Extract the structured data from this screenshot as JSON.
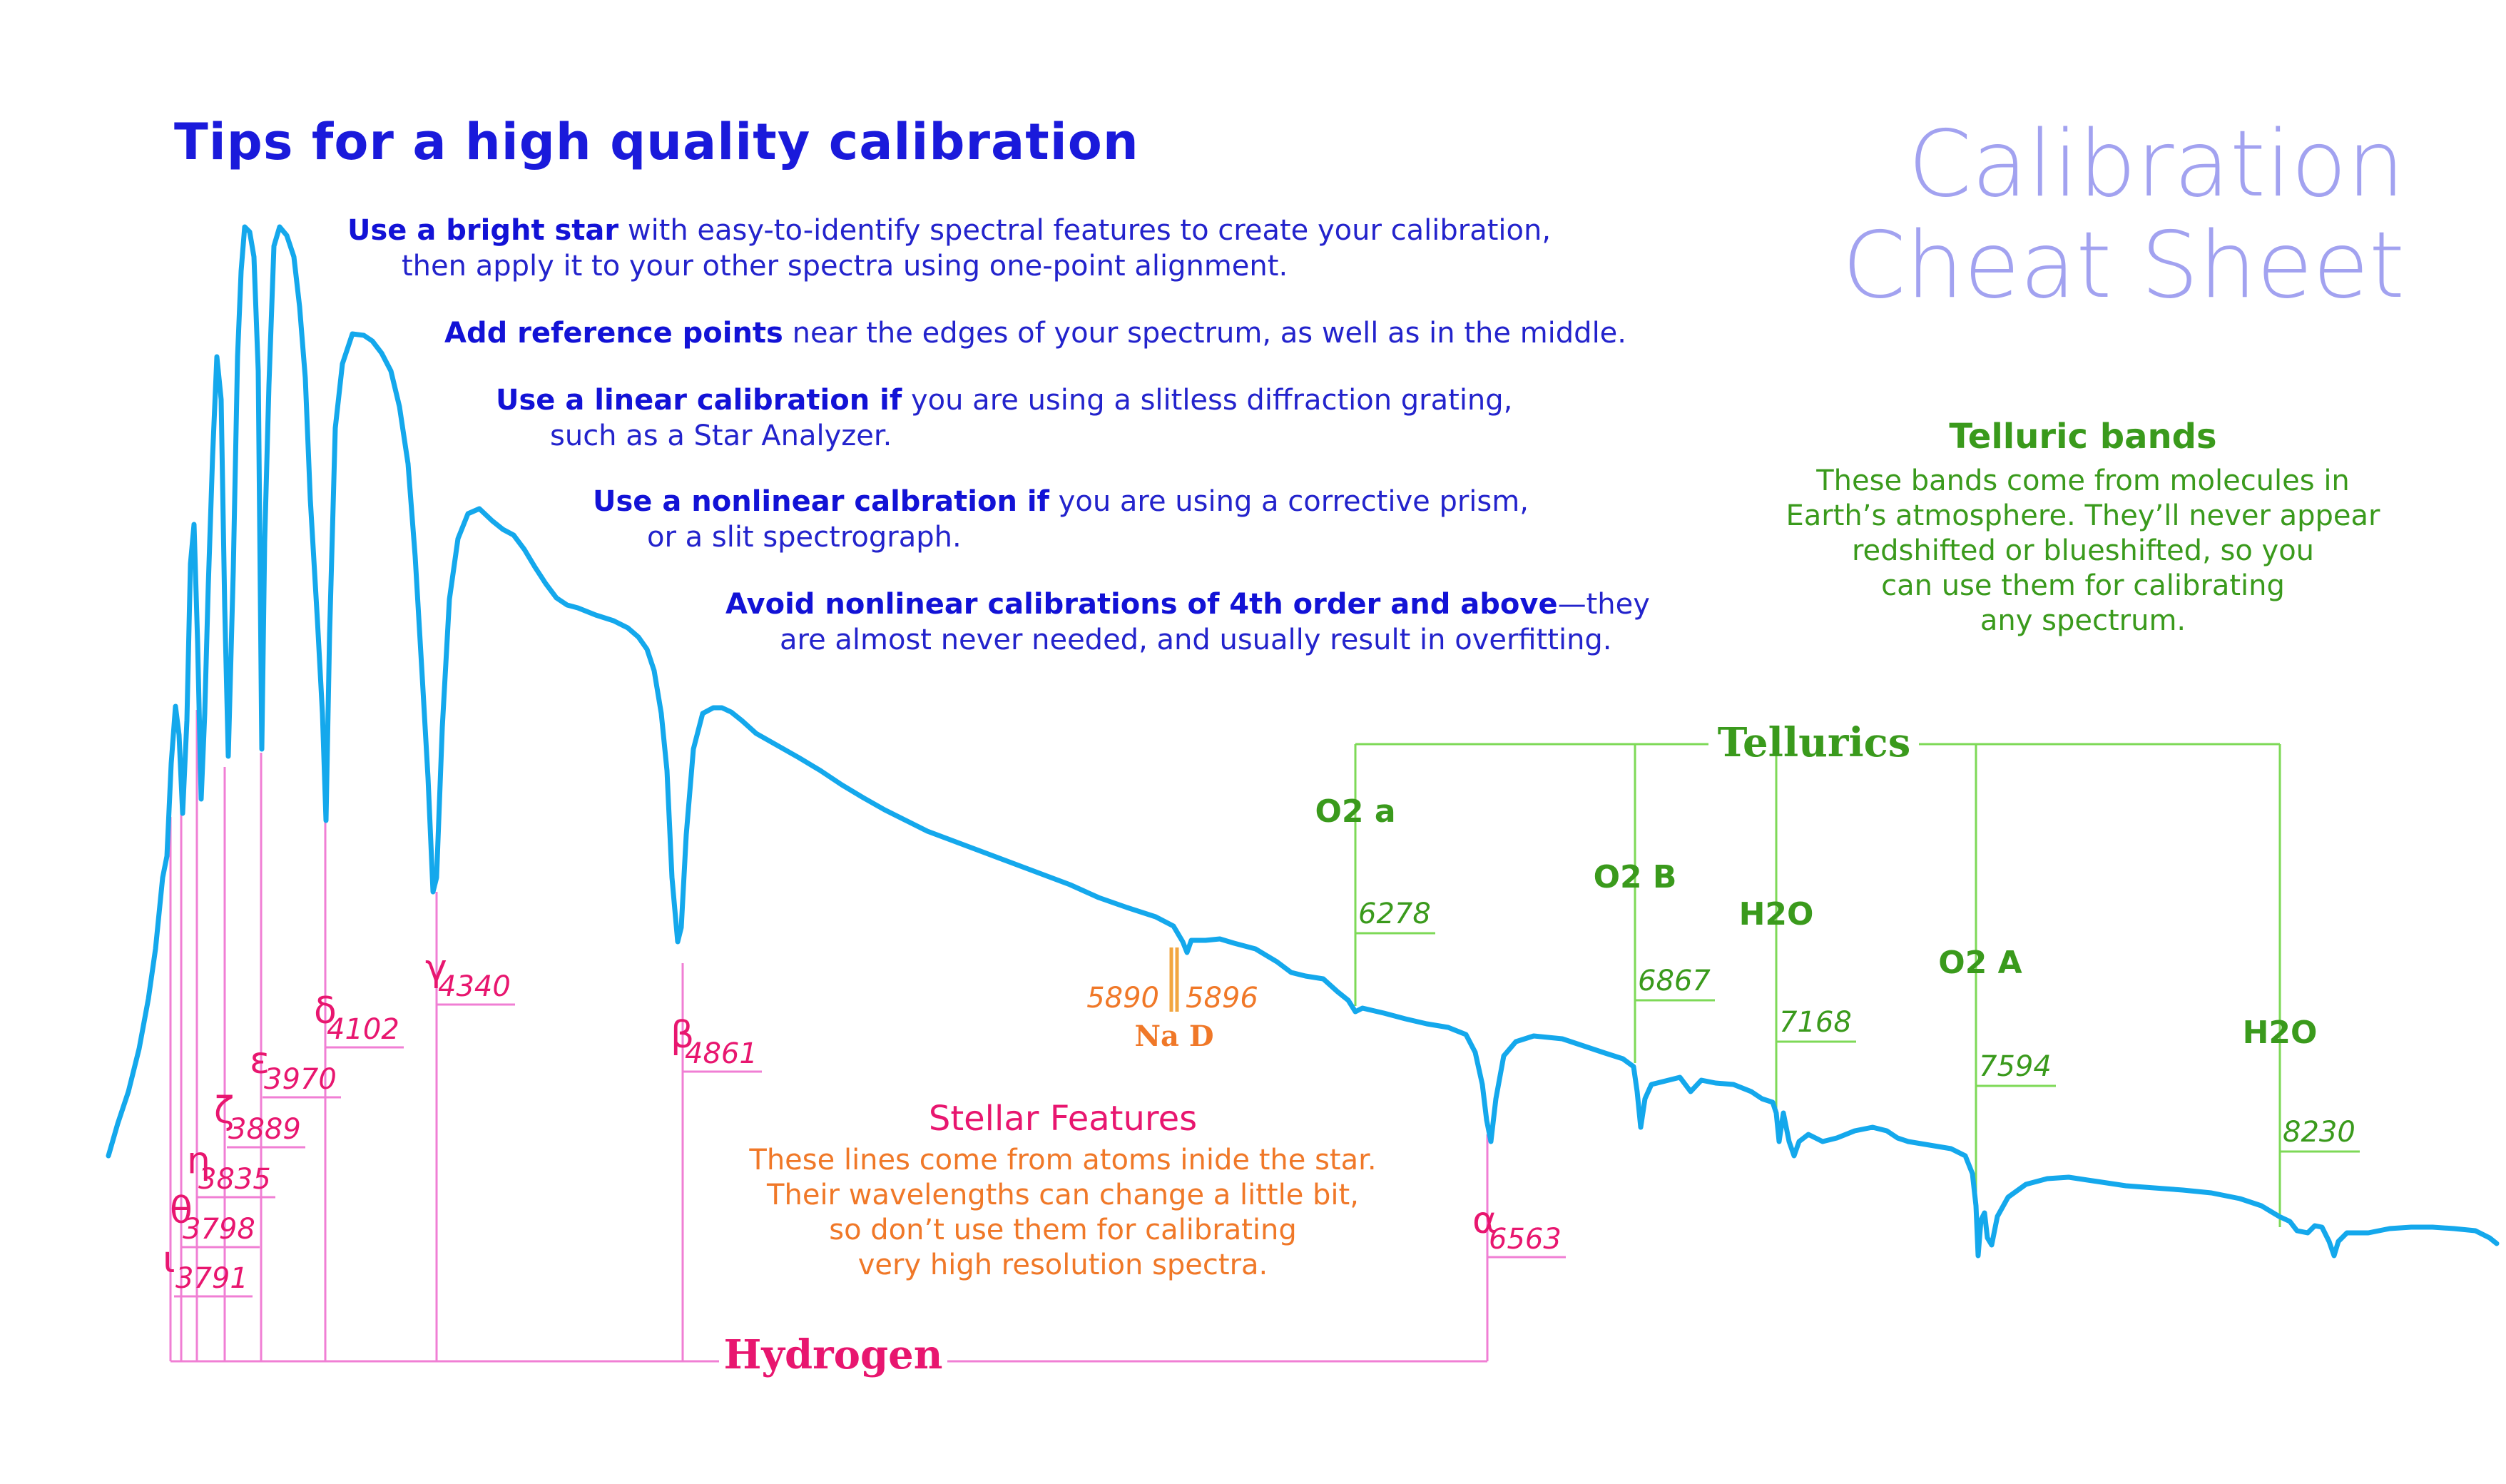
{
  "tips": {
    "title": "Tips for a high quality calibration",
    "items": [
      {
        "bold": "Use a bright star",
        "rest": " with easy-to-identify spectral features to create your calibration,",
        "line2": "then apply it to your other spectra using one-point alignment."
      },
      {
        "bold": "Add reference points",
        "rest": " near the edges of your spectrum, as well as in the middle.",
        "line2": ""
      },
      {
        "bold": "Use a linear calibration if",
        "rest": " you are using a slitless diffraction grating,",
        "line2": "such as a Star Analyzer."
      },
      {
        "bold": "Use a nonlinear calbration if",
        "rest": " you are using a corrective prism,",
        "line2": "or a slit spectrograph."
      },
      {
        "bold": "Avoid nonlinear calibrations of 4th order and above",
        "rest": "—they",
        "line2": "are almost never needed, and usually result in overfitting."
      }
    ]
  },
  "cheat_title": {
    "line1": "Calibration",
    "line2": "Cheat Sheet"
  },
  "telluric_box": {
    "heading": "Telluric bands",
    "lines": [
      "These bands come from molecules in",
      "Earth’s atmosphere. They’ll never appear",
      "redshifted or blueshifted, so you",
      "can use them for calibrating",
      "any spectrum."
    ]
  },
  "stellar_box": {
    "heading": "Stellar Features",
    "lines": [
      "These lines come from atoms inide the star.",
      "Their wavelengths can change a little bit,",
      "so don’t use them for calibrating",
      "very high resolution spectra."
    ]
  },
  "hydrogen": {
    "group_label": "Hydrogen",
    "color": "#e8166f",
    "line_color": "#f07fd4",
    "lines": [
      {
        "symbol": "ι",
        "wavelength": "3791"
      },
      {
        "symbol": "θ",
        "wavelength": "3798"
      },
      {
        "symbol": "η",
        "wavelength": "3835"
      },
      {
        "symbol": "ζ",
        "wavelength": "3889"
      },
      {
        "symbol": "ε",
        "wavelength": "3970"
      },
      {
        "symbol": "δ",
        "wavelength": "4102"
      },
      {
        "symbol": "γ",
        "wavelength": "4340"
      },
      {
        "symbol": "β",
        "wavelength": "4861"
      },
      {
        "symbol": "α",
        "wavelength": "6563"
      }
    ]
  },
  "sodium": {
    "label": "Na D",
    "wavelengths": [
      "5890",
      "5896"
    ],
    "color": "#f07828"
  },
  "tellurics": {
    "group_label": "Tellurics",
    "color": "#3a9a1c",
    "line_color": "#7ed957",
    "bands": [
      {
        "molecule": "O2 a",
        "wavelength": "6278"
      },
      {
        "molecule": "O2 B",
        "wavelength": "6867"
      },
      {
        "molecule": "H2O",
        "wavelength": "7168"
      },
      {
        "molecule": "O2 A",
        "wavelength": "7594"
      },
      {
        "molecule": "H2O",
        "wavelength": "8230"
      }
    ]
  },
  "spectrum_color": "#14a8ec"
}
